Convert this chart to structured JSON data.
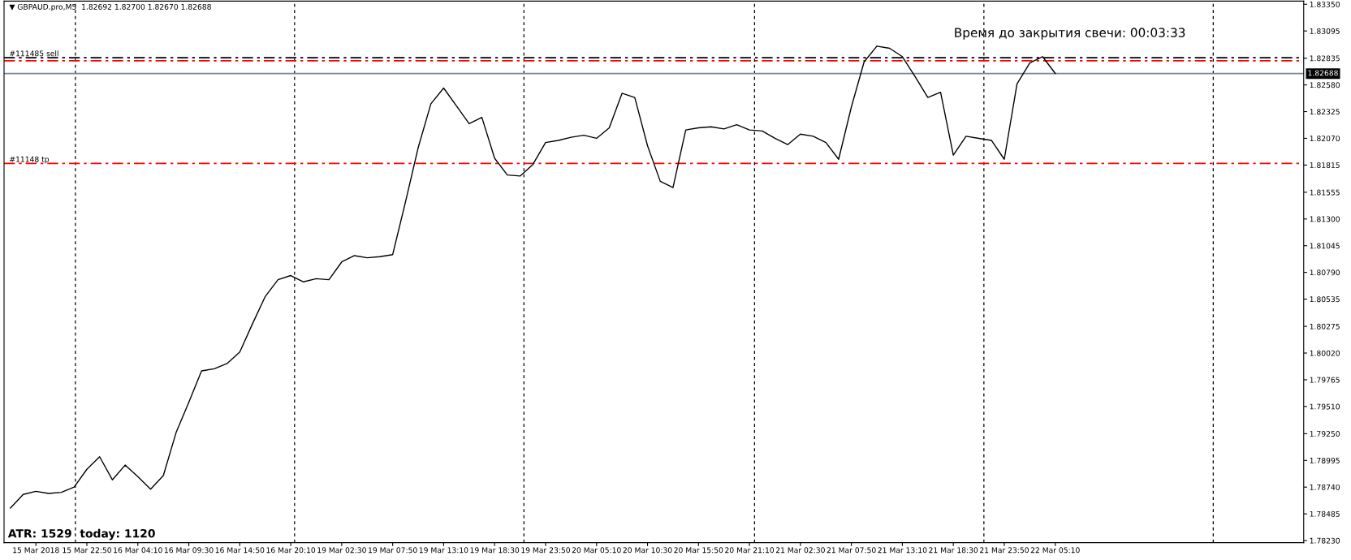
{
  "chart_data": {
    "type": "line",
    "title": "▼ GBPAUD.pro,M5  1.82692 1.82700 1.82670 1.82688",
    "categories": [
      null,
      null,
      "15 Mar 2018",
      null,
      null,
      null,
      "15 Mar 22:50",
      null,
      null,
      null,
      "16 Mar 04:10",
      null,
      null,
      null,
      "16 Mar 09:30",
      null,
      null,
      null,
      "16 Mar 14:50",
      null,
      null,
      null,
      "16 Mar 20:10",
      null,
      null,
      null,
      "19 Mar 02:30",
      null,
      null,
      null,
      "19 Mar 07:50",
      null,
      null,
      null,
      "19 Mar 13:10",
      null,
      null,
      null,
      "19 Mar 18:30",
      null,
      null,
      null,
      "19 Mar 23:50",
      null,
      null,
      null,
      "20 Mar 05:10",
      null,
      null,
      null,
      "20 Mar 10:30",
      null,
      null,
      null,
      "20 Mar 15:50",
      null,
      null,
      null,
      "20 Mar 21:10",
      null,
      null,
      null,
      "21 Mar 02:30",
      null,
      null,
      null,
      "21 Mar 07:50",
      null,
      null,
      null,
      "21 Mar 13:10",
      null,
      null,
      null,
      "21 Mar 18:30",
      null,
      null,
      null,
      "21 Mar 23:50",
      null,
      null,
      null,
      "22 Mar 05:10",
      null,
      null,
      null,
      null,
      null,
      null,
      null,
      null,
      null,
      null,
      null,
      null,
      null,
      null,
      null,
      null,
      null,
      null,
      null
    ],
    "series": [
      {
        "color": "#000000",
        "values": [
          1.7854,
          1.7867,
          1.787,
          1.7868,
          1.7869,
          1.7874,
          1.7891,
          1.7903,
          1.7881,
          1.7895,
          1.7884,
          1.7872,
          1.7885,
          1.7926,
          1.7955,
          1.7985,
          1.7987,
          1.7992,
          1.8003,
          1.803,
          1.8056,
          1.8072,
          1.8076,
          1.807,
          1.8073,
          1.8072,
          1.8089,
          1.8095,
          1.8093,
          1.8094,
          1.8096,
          1.8146,
          1.8198,
          1.824,
          1.8255,
          1.8238,
          1.8221,
          1.8227,
          1.8188,
          1.8172,
          1.8171,
          1.8182,
          1.8203,
          1.8205,
          1.8208,
          1.821,
          1.8207,
          1.8217,
          1.825,
          1.8246,
          1.82,
          1.8166,
          1.816,
          1.8215,
          1.8217,
          1.8218,
          1.8216,
          1.822,
          1.8215,
          1.8214,
          1.8207,
          1.8201,
          1.8211,
          1.8209,
          1.8203,
          1.8187,
          1.8237,
          1.828,
          1.8295,
          1.8293,
          1.8285,
          1.8266,
          1.8246,
          1.8251,
          1.8191,
          1.8209,
          1.8207,
          1.8205,
          1.8187,
          1.8259,
          1.8279,
          1.8285,
          1.8269,
          null,
          null,
          null,
          null,
          null,
          null,
          null,
          null,
          null,
          null,
          null,
          null,
          null,
          null,
          null,
          null,
          null,
          null,
          null
        ]
      }
    ],
    "ylim": [
      1.7821,
      1.8338
    ],
    "yticks": [
      {
        "value": 1.7823,
        "label": "1.78230"
      },
      {
        "value": 1.78485,
        "label": "1.78485"
      },
      {
        "value": 1.7874,
        "label": "1.78740"
      },
      {
        "value": 1.78995,
        "label": "1.78995"
      },
      {
        "value": 1.7925,
        "label": "1.79250"
      },
      {
        "value": 1.7951,
        "label": "1.79510"
      },
      {
        "value": 1.79765,
        "label": "1.79765"
      },
      {
        "value": 1.8002,
        "label": "1.80020"
      },
      {
        "value": 1.80275,
        "label": "1.80275"
      },
      {
        "value": 1.80535,
        "label": "1.80535"
      },
      {
        "value": 1.8079,
        "label": "1.80790"
      },
      {
        "value": 1.81045,
        "label": "1.81045"
      },
      {
        "value": 1.813,
        "label": "1.81300"
      },
      {
        "value": 1.81555,
        "label": "1.81555"
      },
      {
        "value": 1.81815,
        "label": "1.81815"
      },
      {
        "value": 1.8207,
        "label": "1.82070"
      },
      {
        "value": 1.82325,
        "label": "1.82325"
      },
      {
        "value": 1.8258,
        "label": "1.82580"
      },
      {
        "value": 1.82835,
        "label": "1.82835"
      },
      {
        "value": 1.83095,
        "label": "1.83095"
      },
      {
        "value": 1.8335,
        "label": "1.83350"
      }
    ],
    "ref_lines": [
      {
        "axis": "y",
        "value": 1.8284,
        "label": "#111485 sell",
        "color": "#000000",
        "line_style": "dashdot"
      },
      {
        "axis": "y",
        "value": 1.8281,
        "color": "#ff0000",
        "line_style": "dashdot"
      },
      {
        "axis": "y",
        "value": 1.8183,
        "label": "#11148 tp",
        "color": "#ff0000",
        "line_style": "dashdot"
      },
      {
        "axis": "y",
        "value": 1.82688,
        "label": "1.82688",
        "color": "#778899",
        "line_style": "solid"
      }
    ],
    "annotations": [
      "Время до закрытия свечи: 00:03:33",
      "ATR: 1529  today: 1120"
    ],
    "grid": false,
    "legend": false,
    "line_style": "solid",
    "marker": "none"
  }
}
